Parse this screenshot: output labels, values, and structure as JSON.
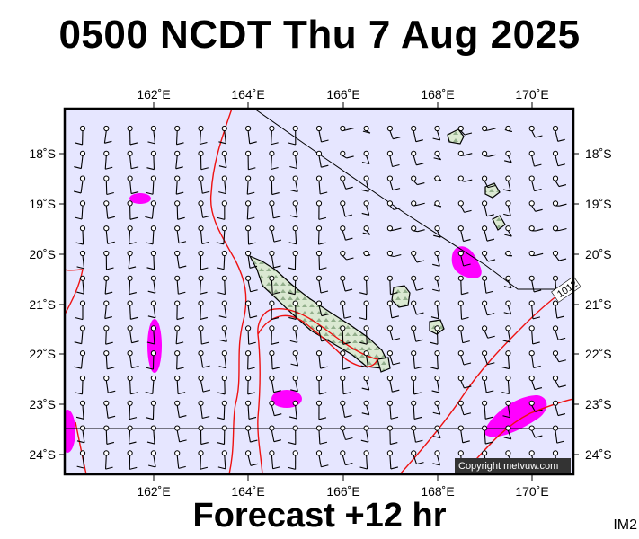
{
  "title": "0500 NCDT Thu 7 Aug 2025",
  "footer": "Forecast +12 hr",
  "image_code": "IM2",
  "copyright": "Copyright metvuw.com",
  "isobar_label": "1012",
  "map": {
    "lon_labels": [
      "162˚E",
      "164˚E",
      "166˚E",
      "168˚E",
      "170˚E"
    ],
    "lat_labels": [
      "18˚S",
      "19˚S",
      "20˚S",
      "21˚S",
      "22˚S",
      "23˚S",
      "24˚S"
    ],
    "colors": {
      "background": "#e6e6ff",
      "land": "#cfe3c4",
      "isobar": "#ee1111",
      "rain": "#ff00ff",
      "wind_barb": "#000000"
    }
  }
}
